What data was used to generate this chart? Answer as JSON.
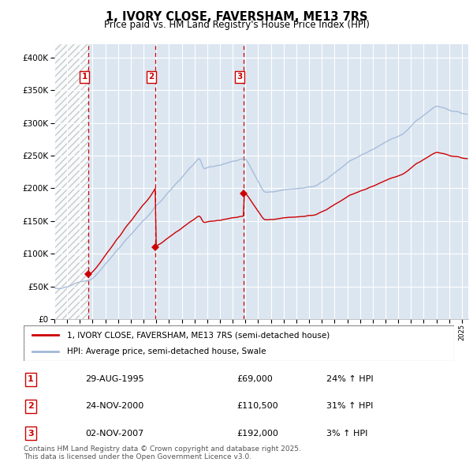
{
  "title": "1, IVORY CLOSE, FAVERSHAM, ME13 7RS",
  "subtitle": "Price paid vs. HM Land Registry's House Price Index (HPI)",
  "background_color": "#ffffff",
  "plot_bg_color": "#dce6f1",
  "grid_color": "#ffffff",
  "ylim": [
    0,
    420000
  ],
  "yticks": [
    0,
    50000,
    100000,
    150000,
    200000,
    250000,
    300000,
    350000,
    400000
  ],
  "ytick_labels": [
    "£0",
    "£50K",
    "£100K",
    "£150K",
    "£200K",
    "£250K",
    "£300K",
    "£350K",
    "£400K"
  ],
  "sale_dates_num": [
    1995.66,
    2000.92,
    2007.84
  ],
  "sale_prices": [
    69000,
    110500,
    192000
  ],
  "sale_labels": [
    "1",
    "2",
    "3"
  ],
  "hpi_line_color": "#a0b8d8",
  "price_line_color": "#cc0000",
  "vline_color": "#cc0000",
  "legend_label_price": "1, IVORY CLOSE, FAVERSHAM, ME13 7RS (semi-detached house)",
  "legend_label_hpi": "HPI: Average price, semi-detached house, Swale",
  "table_rows": [
    {
      "num": "1",
      "date": "29-AUG-1995",
      "price": "£69,000",
      "hpi": "24% ↑ HPI"
    },
    {
      "num": "2",
      "date": "24-NOV-2000",
      "price": "£110,500",
      "hpi": "31% ↑ HPI"
    },
    {
      "num": "3",
      "date": "02-NOV-2007",
      "price": "£192,000",
      "hpi": "3% ↑ HPI"
    }
  ],
  "footer": "Contains HM Land Registry data © Crown copyright and database right 2025.\nThis data is licensed under the Open Government Licence v3.0.",
  "xmin": 1993,
  "xmax": 2025.5
}
